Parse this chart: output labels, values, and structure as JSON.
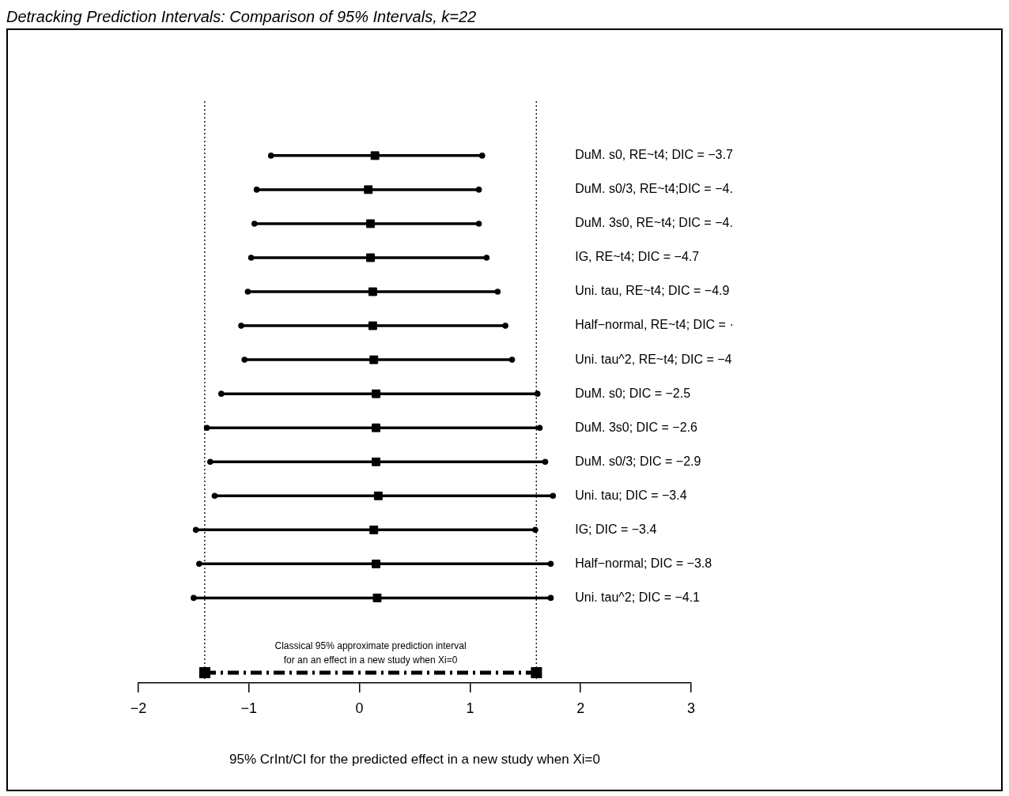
{
  "chart_data": {
    "type": "scatter",
    "orientation": "horizontal",
    "title": "Detracking Prediction Intervals: Comparison of 95% Intervals, k=22",
    "xlabel": "95% CrInt/CI for the predicted effect in a new study when Xi=0",
    "categories": [
      "DuM. s0, RE~t4; DIC = −3.7",
      "DuM. s0/3, RE~t4;DIC = −4.",
      "DuM. 3s0, RE~t4; DIC = −4.",
      "IG, RE~t4; DIC = −4.7",
      "Uni. tau, RE~t4; DIC = −4.9",
      "Half−normal, RE~t4; DIC = ·",
      "Uni. tau^2, RE~t4; DIC = −4",
      "DuM. s0; DIC = −2.5",
      "DuM. 3s0; DIC = −2.6",
      "DuM. s0/3; DIC = −2.9",
      "Uni. tau; DIC = −3.4",
      "IG; DIC = −3.4",
      "Half−normal; DIC = −3.8",
      "Uni. tau^2; DIC = −4.1"
    ],
    "values": [
      0.14,
      0.08,
      0.1,
      0.1,
      0.12,
      0.12,
      0.13,
      0.15,
      0.15,
      0.15,
      0.17,
      0.13,
      0.15,
      0.16
    ],
    "errors": [
      [
        -0.8,
        1.11
      ],
      [
        -0.93,
        1.08
      ],
      [
        -0.95,
        1.08
      ],
      [
        -0.98,
        1.15
      ],
      [
        -1.01,
        1.25
      ],
      [
        -1.07,
        1.32
      ],
      [
        -1.04,
        1.38
      ],
      [
        -1.25,
        1.61
      ],
      [
        -1.38,
        1.63
      ],
      [
        -1.35,
        1.68
      ],
      [
        -1.31,
        1.75
      ],
      [
        -1.48,
        1.59
      ],
      [
        -1.45,
        1.73
      ],
      [
        -1.5,
        1.73
      ]
    ],
    "color": "#000000",
    "marker": "square",
    "xlim": [
      -2,
      3
    ],
    "xticks": [
      -2,
      -1,
      0,
      1,
      2,
      3
    ],
    "ref_lines": [
      {
        "axis": "x",
        "value": -1.4,
        "line_style": "dotted"
      },
      {
        "axis": "x",
        "value": 1.6,
        "line_style": "dotted"
      }
    ],
    "annotations": [
      "Classical 95% approximate prediction interval\nfor an an effect in a new study when Xi=0"
    ],
    "grid": false,
    "legend": false
  }
}
